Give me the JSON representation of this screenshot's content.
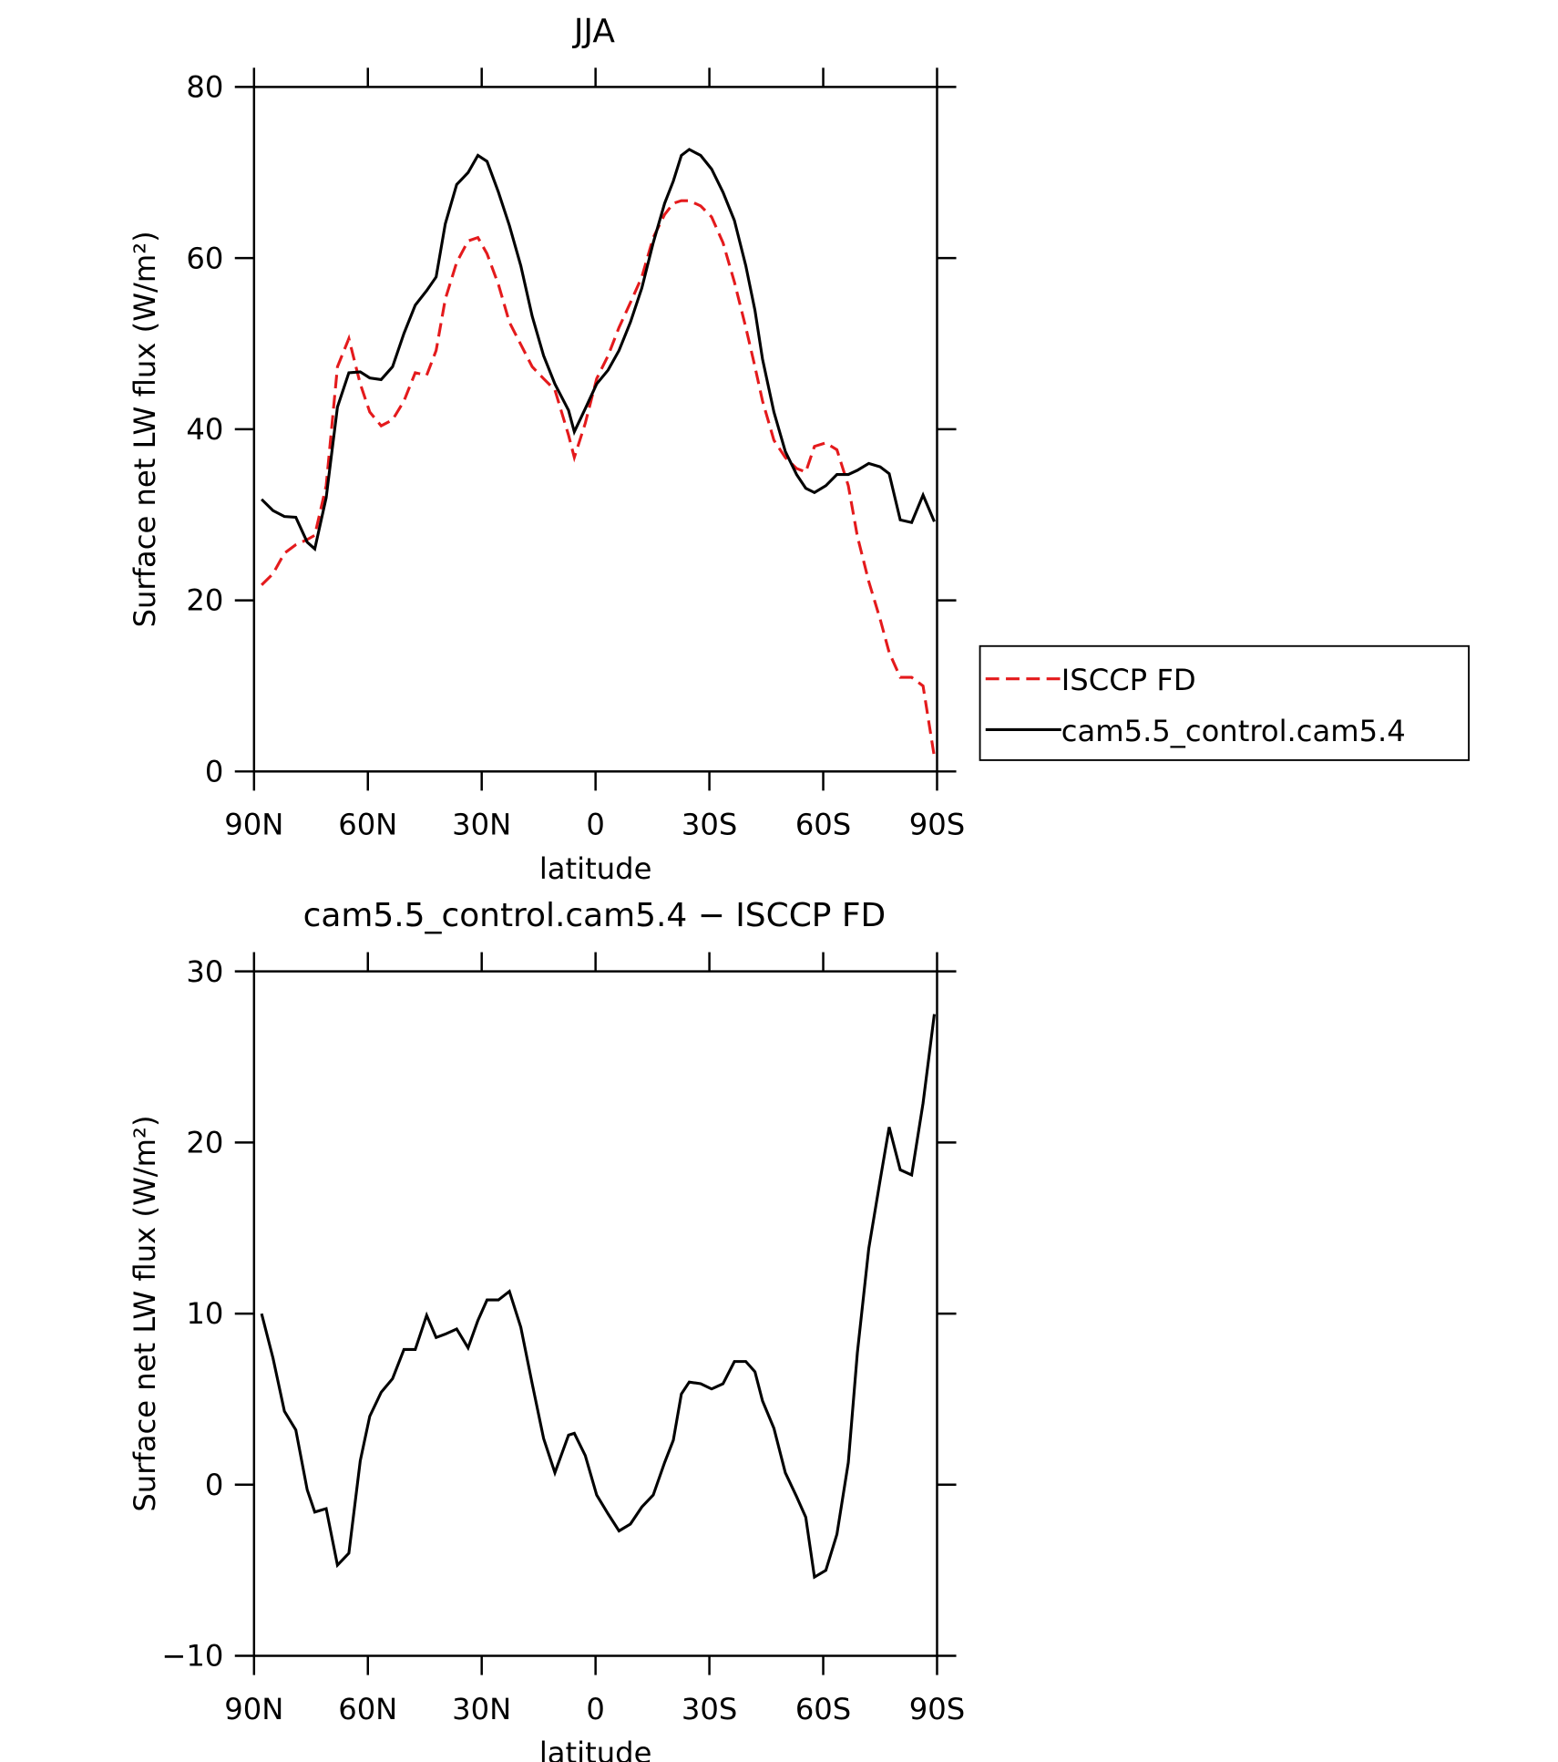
{
  "chart_data": [
    {
      "type": "line",
      "title": "JJA",
      "xlabel": "latitude",
      "ylabel": "Surface net LW flux (W/m²)",
      "x": [
        88,
        85,
        82,
        79,
        76,
        74,
        71,
        68,
        65,
        62,
        59.5,
        56.5,
        53.5,
        50.5,
        47.5,
        44.5,
        42,
        39.6,
        36.6,
        33.6,
        31,
        28.6,
        25.6,
        22.7,
        19.7,
        16.7,
        13.7,
        10.7,
        7.1,
        5.6,
        2.7,
        -0.3,
        -3.3,
        -6.2,
        -9.2,
        -12.2,
        -15.2,
        -18.2,
        -20.5,
        -22.6,
        -24.7,
        -27.7,
        -30.6,
        -33.6,
        -36.6,
        -39.6,
        -42,
        -44,
        -47,
        -50,
        -53,
        -55.4,
        -57.7,
        -60.7,
        -63.6,
        -66.6,
        -69,
        -72,
        -75,
        -77.4,
        -80.3,
        -83.3,
        -86.3,
        -89.3
      ],
      "series": [
        {
          "name": "ISCCP FD",
          "color": "#e41a1c",
          "dashed": true,
          "values": [
            21.8,
            23.1,
            25.5,
            26.5,
            27.1,
            27.6,
            33.4,
            47.3,
            50.6,
            45.3,
            42,
            40.4,
            41.1,
            43.3,
            46.6,
            46.3,
            49.2,
            55.2,
            59.5,
            62,
            62.4,
            60.5,
            56.9,
            52.5,
            49.9,
            47.3,
            45.9,
            44.6,
            39.3,
            36.7,
            40.7,
            45.9,
            48.6,
            51.9,
            54.8,
            57.8,
            62.4,
            65.1,
            66.4,
            66.7,
            66.7,
            66.1,
            64.8,
            61.8,
            57.2,
            51.9,
            47.3,
            43.3,
            38.7,
            36.7,
            35.4,
            35,
            38,
            38.4,
            37.6,
            33.4,
            27.5,
            22.2,
            17.8,
            13.9,
            11,
            11,
            10,
            1.7
          ]
        },
        {
          "name": "cam5.5_control.cam5.4",
          "color": "#000000",
          "dashed": false,
          "values": [
            31.8,
            30.5,
            29.8,
            29.7,
            26.8,
            26,
            32,
            42.6,
            46.6,
            46.7,
            46,
            45.8,
            47.3,
            51.2,
            54.5,
            56.2,
            57.8,
            64,
            68.6,
            70,
            72,
            71.3,
            67.7,
            63.8,
            59.1,
            53.2,
            48.6,
            45.3,
            42.2,
            39.7,
            42.4,
            45.3,
            46.9,
            49.2,
            52.5,
            56.5,
            61.8,
            66.4,
            69,
            72,
            72.7,
            72,
            70.4,
            67.7,
            64.4,
            59.1,
            53.9,
            48.2,
            42,
            37.4,
            34.7,
            33.1,
            32.6,
            33.4,
            34.7,
            34.7,
            35.2,
            36,
            35.6,
            34.8,
            29.4,
            29.1,
            32.3,
            29.2
          ]
        }
      ],
      "xlim": [
        90,
        -90
      ],
      "xticks": [
        {
          "value": 90,
          "label": "90N"
        },
        {
          "value": 60,
          "label": "60N"
        },
        {
          "value": 30,
          "label": "30N"
        },
        0,
        {
          "value": -30,
          "label": "30S"
        },
        {
          "value": -60,
          "label": "60S"
        },
        {
          "value": -90,
          "label": "90S"
        }
      ],
      "ylim": [
        0,
        80
      ],
      "yticks": [
        0,
        20,
        40,
        60,
        80
      ],
      "legend": "outside right",
      "grid": false
    },
    {
      "type": "line",
      "title": "cam5.5_control.cam5.4 − ISCCP FD",
      "xlabel": "latitude",
      "ylabel": "Surface net LW flux (W/m²)",
      "x": [
        88,
        85,
        82,
        79,
        76,
        74,
        71,
        68,
        65,
        62,
        59.5,
        56.5,
        53.5,
        50.5,
        47.5,
        44.5,
        42,
        39.6,
        36.6,
        33.6,
        31,
        28.6,
        25.6,
        22.7,
        19.7,
        16.7,
        13.7,
        10.7,
        7.1,
        5.6,
        2.7,
        -0.3,
        -3.3,
        -6.2,
        -9.2,
        -12.2,
        -15.2,
        -18.2,
        -20.5,
        -22.6,
        -24.7,
        -27.7,
        -30.6,
        -33.6,
        -36.6,
        -39.6,
        -42,
        -44,
        -47,
        -50,
        -53,
        -55.4,
        -57.7,
        -60.7,
        -63.6,
        -66.6,
        -69,
        -72,
        -75,
        -77.4,
        -80.3,
        -83.3,
        -86.3,
        -89.3
      ],
      "series": [
        {
          "color": "#000000",
          "dashed": false,
          "values": [
            10,
            7.4,
            4.3,
            3.2,
            -0.3,
            -1.6,
            -1.4,
            -4.7,
            -4,
            1.4,
            4,
            5.4,
            6.2,
            7.9,
            7.9,
            9.9,
            8.6,
            8.8,
            9.1,
            8,
            9.6,
            10.8,
            10.8,
            11.3,
            9.2,
            5.9,
            2.7,
            0.7,
            2.9,
            3,
            1.7,
            -0.6,
            -1.7,
            -2.7,
            -2.3,
            -1.3,
            -0.6,
            1.3,
            2.6,
            5.3,
            6,
            5.9,
            5.6,
            5.9,
            7.2,
            7.2,
            6.6,
            4.9,
            3.3,
            0.7,
            -0.7,
            -1.9,
            -5.4,
            -5,
            -2.9,
            1.3,
            7.7,
            13.8,
            17.8,
            20.9,
            18.4,
            18.1,
            22.3,
            27.5
          ]
        }
      ],
      "xlim": [
        90,
        -90
      ],
      "xticks": [
        {
          "value": 90,
          "label": "90N"
        },
        {
          "value": 60,
          "label": "60N"
        },
        {
          "value": 30,
          "label": "30N"
        },
        0,
        {
          "value": -30,
          "label": "30S"
        },
        {
          "value": -60,
          "label": "60S"
        },
        {
          "value": -90,
          "label": "90S"
        }
      ],
      "ylim": [
        -10,
        30
      ],
      "yticks": [
        {
          "value": -10,
          "label": "−10"
        },
        0,
        10,
        20,
        30
      ],
      "grid": false
    }
  ]
}
